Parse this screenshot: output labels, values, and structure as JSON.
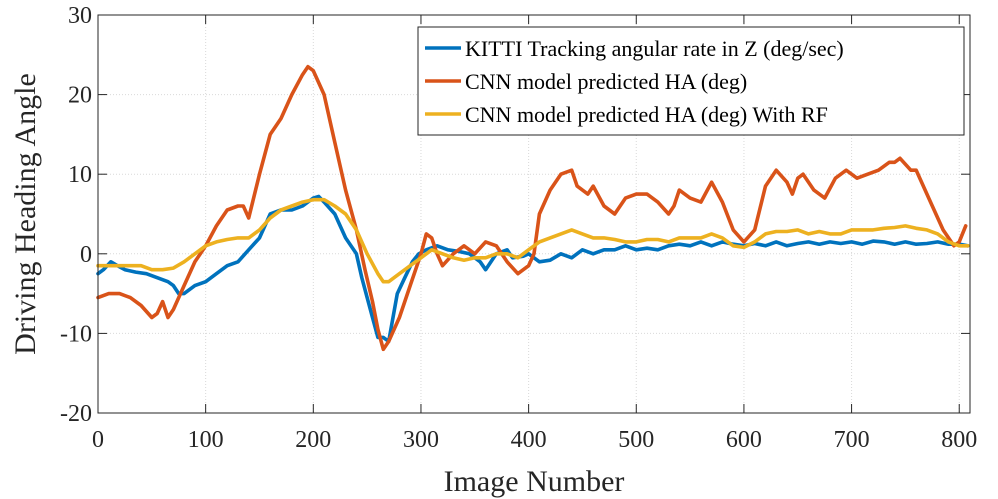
{
  "chart_data": {
    "type": "line",
    "xlabel": "Image Number",
    "ylabel": "Driving Heading Angle",
    "xlim": [
      0,
      810
    ],
    "ylim": [
      -20,
      30
    ],
    "xticks": [
      0,
      100,
      200,
      300,
      400,
      500,
      600,
      700,
      800
    ],
    "xtick_labels": [
      "0",
      "100",
      "200",
      "300",
      "400",
      "500",
      "600",
      "700",
      "800"
    ],
    "yticks": [
      -20,
      -10,
      0,
      10,
      20,
      30
    ],
    "ytick_labels": [
      "-20",
      "-10",
      "0",
      "10",
      "20",
      "30"
    ],
    "grid": true,
    "legend_position": "top-right",
    "series": [
      {
        "name": "KITTI Tracking angular rate in Z (deg/sec)",
        "color": "#0072BD",
        "points": [
          [
            0,
            -2.5
          ],
          [
            5,
            -2
          ],
          [
            12,
            -1
          ],
          [
            18,
            -1.5
          ],
          [
            25,
            -2
          ],
          [
            35,
            -2.3
          ],
          [
            45,
            -2.5
          ],
          [
            55,
            -3
          ],
          [
            65,
            -3.5
          ],
          [
            70,
            -4
          ],
          [
            75,
            -5
          ],
          [
            80,
            -5
          ],
          [
            90,
            -4
          ],
          [
            100,
            -3.5
          ],
          [
            110,
            -2.5
          ],
          [
            120,
            -1.5
          ],
          [
            130,
            -1
          ],
          [
            140,
            0.5
          ],
          [
            150,
            2
          ],
          [
            160,
            5
          ],
          [
            170,
            5.5
          ],
          [
            180,
            5.5
          ],
          [
            190,
            6
          ],
          [
            200,
            7
          ],
          [
            205,
            7.2
          ],
          [
            210,
            6.5
          ],
          [
            220,
            5
          ],
          [
            230,
            2
          ],
          [
            240,
            0
          ],
          [
            245,
            -3
          ],
          [
            255,
            -8
          ],
          [
            260,
            -10.5
          ],
          [
            265,
            -10.5
          ],
          [
            270,
            -11
          ],
          [
            278,
            -5
          ],
          [
            285,
            -3
          ],
          [
            292,
            -1
          ],
          [
            298,
            0
          ],
          [
            305,
            0.5
          ],
          [
            315,
            1
          ],
          [
            325,
            0.5
          ],
          [
            335,
            0.3
          ],
          [
            345,
            0
          ],
          [
            355,
            -1
          ],
          [
            360,
            -2
          ],
          [
            370,
            0
          ],
          [
            380,
            0.5
          ],
          [
            385,
            -0.5
          ],
          [
            395,
            -0.3
          ],
          [
            400,
            0
          ],
          [
            410,
            -1
          ],
          [
            420,
            -0.8
          ],
          [
            430,
            0
          ],
          [
            440,
            -0.5
          ],
          [
            450,
            0.5
          ],
          [
            460,
            0
          ],
          [
            470,
            0.5
          ],
          [
            480,
            0.5
          ],
          [
            490,
            1
          ],
          [
            500,
            0.5
          ],
          [
            510,
            0.7
          ],
          [
            520,
            0.5
          ],
          [
            530,
            1
          ],
          [
            540,
            1.2
          ],
          [
            550,
            1
          ],
          [
            560,
            1.5
          ],
          [
            570,
            1
          ],
          [
            580,
            1.5
          ],
          [
            590,
            1.2
          ],
          [
            600,
            1
          ],
          [
            610,
            1.3
          ],
          [
            620,
            1
          ],
          [
            630,
            1.5
          ],
          [
            640,
            1
          ],
          [
            650,
            1.3
          ],
          [
            660,
            1.5
          ],
          [
            670,
            1.2
          ],
          [
            680,
            1.5
          ],
          [
            690,
            1.3
          ],
          [
            700,
            1.5
          ],
          [
            710,
            1.2
          ],
          [
            720,
            1.6
          ],
          [
            730,
            1.5
          ],
          [
            740,
            1.2
          ],
          [
            750,
            1.5
          ],
          [
            760,
            1.2
          ],
          [
            770,
            1.3
          ],
          [
            780,
            1.5
          ],
          [
            790,
            1.2
          ],
          [
            800,
            1.2
          ],
          [
            808,
            1.0
          ]
        ]
      },
      {
        "name": "CNN model predicted HA (deg)",
        "color": "#D95319",
        "points": [
          [
            0,
            -5.5
          ],
          [
            10,
            -5
          ],
          [
            20,
            -5
          ],
          [
            30,
            -5.5
          ],
          [
            40,
            -6.5
          ],
          [
            50,
            -8
          ],
          [
            55,
            -7.5
          ],
          [
            60,
            -6
          ],
          [
            65,
            -8
          ],
          [
            70,
            -7
          ],
          [
            80,
            -4
          ],
          [
            90,
            -1
          ],
          [
            100,
            1
          ],
          [
            110,
            3.5
          ],
          [
            120,
            5.5
          ],
          [
            130,
            6
          ],
          [
            135,
            6
          ],
          [
            140,
            4.5
          ],
          [
            150,
            10
          ],
          [
            160,
            15
          ],
          [
            170,
            17
          ],
          [
            180,
            20
          ],
          [
            190,
            22.5
          ],
          [
            195,
            23.5
          ],
          [
            200,
            23
          ],
          [
            210,
            20
          ],
          [
            220,
            14
          ],
          [
            230,
            8
          ],
          [
            240,
            3
          ],
          [
            248,
            -2
          ],
          [
            255,
            -6
          ],
          [
            260,
            -9.5
          ],
          [
            265,
            -12
          ],
          [
            270,
            -11
          ],
          [
            280,
            -8
          ],
          [
            290,
            -4
          ],
          [
            300,
            0
          ],
          [
            305,
            2.5
          ],
          [
            310,
            2
          ],
          [
            315,
            0
          ],
          [
            320,
            -1.5
          ],
          [
            330,
            0
          ],
          [
            340,
            1
          ],
          [
            350,
            0
          ],
          [
            360,
            1.5
          ],
          [
            370,
            1
          ],
          [
            380,
            -1
          ],
          [
            390,
            -2.5
          ],
          [
            400,
            -1.5
          ],
          [
            405,
            0
          ],
          [
            410,
            5
          ],
          [
            420,
            8
          ],
          [
            430,
            10
          ],
          [
            440,
            10.5
          ],
          [
            445,
            8.5
          ],
          [
            455,
            7.5
          ],
          [
            460,
            8.5
          ],
          [
            470,
            6
          ],
          [
            480,
            5
          ],
          [
            490,
            7
          ],
          [
            500,
            7.5
          ],
          [
            510,
            7.5
          ],
          [
            520,
            6.5
          ],
          [
            530,
            5
          ],
          [
            535,
            6
          ],
          [
            540,
            8
          ],
          [
            550,
            7
          ],
          [
            560,
            6.5
          ],
          [
            570,
            9
          ],
          [
            580,
            6.5
          ],
          [
            590,
            3
          ],
          [
            600,
            1.5
          ],
          [
            610,
            3
          ],
          [
            620,
            8.5
          ],
          [
            630,
            10.5
          ],
          [
            640,
            9
          ],
          [
            645,
            7.5
          ],
          [
            650,
            9.5
          ],
          [
            655,
            10
          ],
          [
            665,
            8
          ],
          [
            675,
            7
          ],
          [
            685,
            9.5
          ],
          [
            695,
            10.5
          ],
          [
            705,
            9.5
          ],
          [
            715,
            10
          ],
          [
            725,
            10.5
          ],
          [
            735,
            11.5
          ],
          [
            740,
            11.5
          ],
          [
            745,
            12
          ],
          [
            755,
            10.5
          ],
          [
            760,
            10.5
          ],
          [
            765,
            9
          ],
          [
            775,
            6
          ],
          [
            785,
            3
          ],
          [
            795,
            1
          ],
          [
            800,
            1.5
          ],
          [
            806,
            3.5
          ]
        ]
      },
      {
        "name": "CNN model predicted HA (deg) With RF",
        "color": "#EDB120",
        "points": [
          [
            0,
            -1.5
          ],
          [
            10,
            -1.5
          ],
          [
            20,
            -1.5
          ],
          [
            30,
            -1.5
          ],
          [
            40,
            -1.5
          ],
          [
            50,
            -2
          ],
          [
            60,
            -2
          ],
          [
            70,
            -1.8
          ],
          [
            80,
            -1
          ],
          [
            90,
            0
          ],
          [
            100,
            1
          ],
          [
            110,
            1.5
          ],
          [
            120,
            1.8
          ],
          [
            130,
            2
          ],
          [
            140,
            2
          ],
          [
            150,
            3
          ],
          [
            160,
            4.5
          ],
          [
            170,
            5.5
          ],
          [
            180,
            6
          ],
          [
            190,
            6.5
          ],
          [
            200,
            6.8
          ],
          [
            210,
            6.8
          ],
          [
            220,
            6
          ],
          [
            230,
            5
          ],
          [
            240,
            3
          ],
          [
            250,
            0
          ],
          [
            260,
            -2.5
          ],
          [
            265,
            -3.5
          ],
          [
            270,
            -3.5
          ],
          [
            280,
            -2.5
          ],
          [
            290,
            -1.5
          ],
          [
            300,
            -0.5
          ],
          [
            310,
            0.5
          ],
          [
            320,
            0
          ],
          [
            330,
            -0.5
          ],
          [
            340,
            -0.8
          ],
          [
            350,
            -0.5
          ],
          [
            360,
            -0.5
          ],
          [
            370,
            0
          ],
          [
            380,
            0
          ],
          [
            390,
            -0.5
          ],
          [
            400,
            0.5
          ],
          [
            410,
            1.5
          ],
          [
            420,
            2
          ],
          [
            430,
            2.5
          ],
          [
            440,
            3
          ],
          [
            450,
            2.5
          ],
          [
            460,
            2
          ],
          [
            470,
            2
          ],
          [
            480,
            1.8
          ],
          [
            490,
            1.5
          ],
          [
            500,
            1.5
          ],
          [
            510,
            1.8
          ],
          [
            520,
            1.8
          ],
          [
            530,
            1.5
          ],
          [
            540,
            2
          ],
          [
            550,
            2
          ],
          [
            560,
            2
          ],
          [
            570,
            2.5
          ],
          [
            580,
            2
          ],
          [
            590,
            1
          ],
          [
            600,
            0.8
          ],
          [
            610,
            1.5
          ],
          [
            620,
            2.5
          ],
          [
            630,
            2.8
          ],
          [
            640,
            2.8
          ],
          [
            650,
            3
          ],
          [
            660,
            2.5
          ],
          [
            670,
            2.8
          ],
          [
            680,
            2.5
          ],
          [
            690,
            2.5
          ],
          [
            700,
            3
          ],
          [
            710,
            3
          ],
          [
            720,
            3
          ],
          [
            730,
            3.2
          ],
          [
            740,
            3.3
          ],
          [
            750,
            3.5
          ],
          [
            760,
            3.2
          ],
          [
            770,
            3
          ],
          [
            780,
            2.5
          ],
          [
            790,
            1.5
          ],
          [
            800,
            1
          ],
          [
            808,
            1
          ]
        ]
      }
    ]
  }
}
